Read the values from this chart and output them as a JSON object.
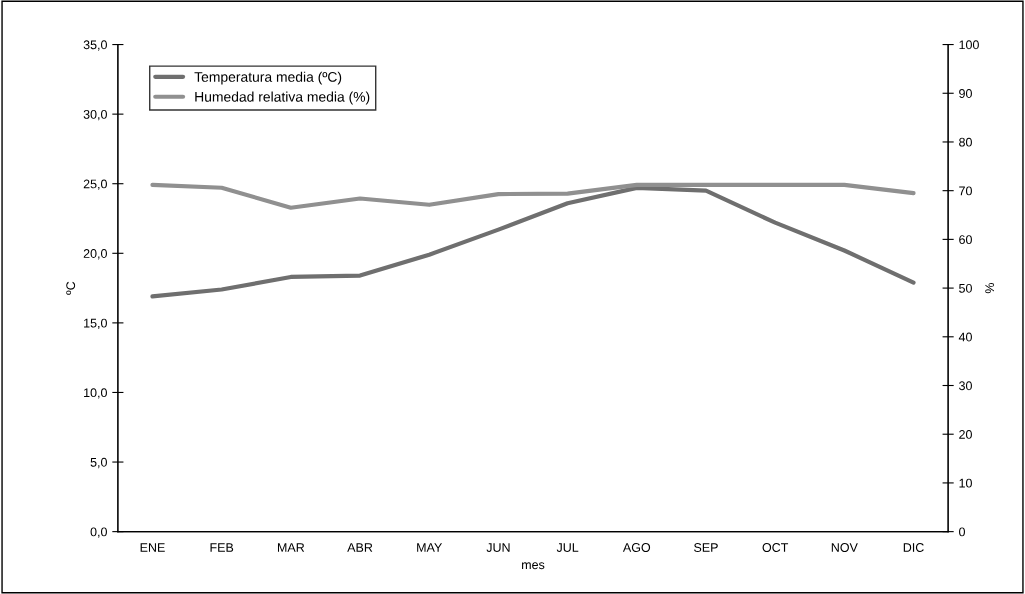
{
  "chart_data": {
    "type": "line",
    "xlabel": "mes",
    "ylabel": "ºC",
    "y2label": "%",
    "categories": [
      "ENE",
      "FEB",
      "MAR",
      "ABR",
      "MAY",
      "JUN",
      "JUL",
      "AGO",
      "SEP",
      "OCT",
      "NOV",
      "DIC"
    ],
    "series": [
      {
        "name": "Temperatura media (ºC)",
        "color": "#6f6f6f",
        "values": [
          16.9,
          17.4,
          18.3,
          18.4,
          19.9,
          21.7,
          23.6,
          24.7,
          24.5,
          22.2,
          20.2,
          17.9
        ]
      },
      {
        "name": "Humedad relativa media (%)",
        "color": "#909090",
        "axis": "y2",
        "values": [
          71.2,
          70.6,
          66.5,
          68.4,
          67.1,
          69.3,
          69.4,
          71.2,
          71.2,
          71.2,
          71.2,
          69.5
        ]
      }
    ],
    "ylim": [
      0,
      35
    ],
    "yticks": [
      {
        "value": 0,
        "label": "0,0"
      },
      {
        "value": 5,
        "label": "5,0"
      },
      {
        "value": 10,
        "label": "10,0"
      },
      {
        "value": 15,
        "label": "15,0"
      },
      {
        "value": 20,
        "label": "20,0"
      },
      {
        "value": 25,
        "label": "25,0"
      },
      {
        "value": 30,
        "label": "30,0"
      },
      {
        "value": 35,
        "label": "35,0"
      }
    ],
    "y2lim": [
      0,
      100
    ],
    "y2ticks": [
      0,
      10,
      20,
      30,
      40,
      50,
      60,
      70,
      80,
      90,
      100
    ],
    "grid": false,
    "legend": "top left",
    "marker": "none",
    "line_style": "solid"
  }
}
